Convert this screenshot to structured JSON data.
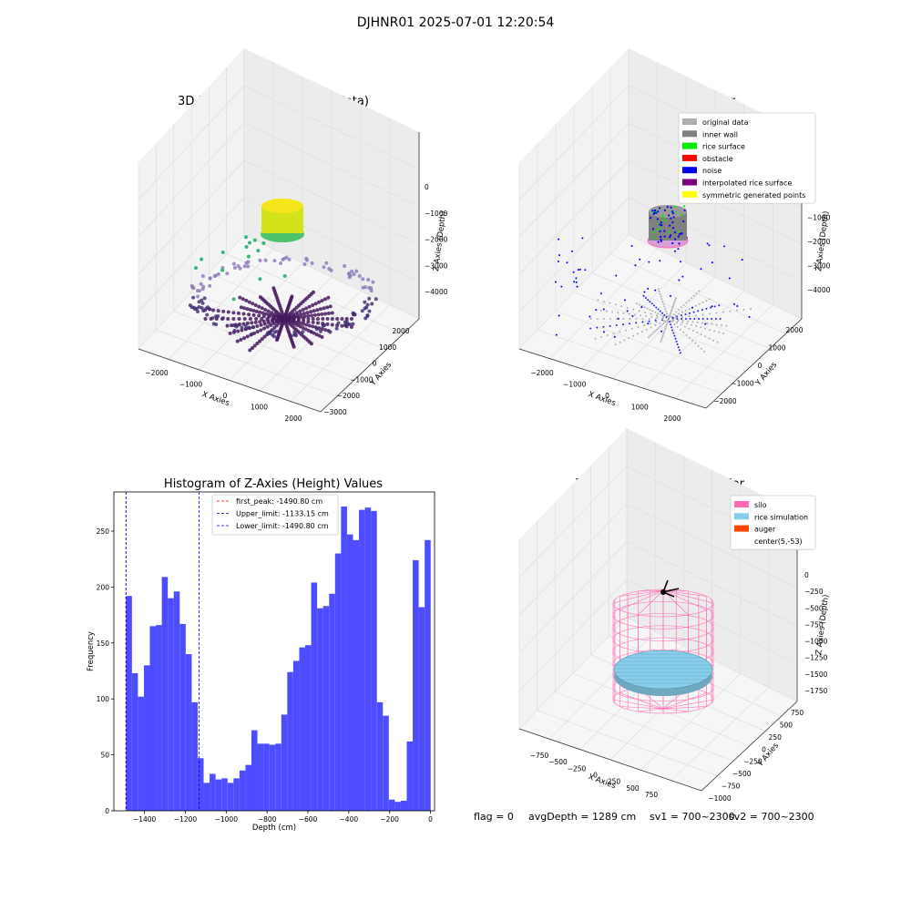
{
  "figure": {
    "suptitle": "DJHNR01 2025-07-01 12:20:54",
    "footer": {
      "flag": "flag = 0",
      "avg": "avgDepth = 1289 cm",
      "sv1": "sv1 = 700~2300",
      "sv2": "sv2 = 700~2300"
    }
  },
  "chart_data": [
    {
      "type": "scatter",
      "projection": "3d",
      "title": "3D Plot of Silo Interior(row data)",
      "xlabel": "X Axies",
      "ylabel": "Y Axies",
      "zlabel": "Z Axies (Depth)",
      "xticks": [
        "−2000",
        "−1000",
        "0",
        "1000",
        "2000"
      ],
      "yticks": [
        "−3000",
        "−2000",
        "−1000",
        "0",
        "1000",
        "2000"
      ],
      "zticks": [
        "0",
        "−1000",
        "−2000",
        "−3000",
        "−4000"
      ],
      "colormap": "viridis",
      "series": [
        {
          "group": "top cylinder",
          "color": "#d4e21a"
        },
        {
          "group": "mid points",
          "color": "#35b779"
        },
        {
          "group": "floor radial lines",
          "color": "#440154"
        },
        {
          "group": "floor ring",
          "color": "#6a5a9a"
        }
      ]
    },
    {
      "type": "scatter",
      "projection": "3d",
      "title": "3D classify of Silo Interior",
      "xlabel": "X Axies",
      "ylabel": "Y Axies",
      "zlabel": "Z Axies (Depth)",
      "xticks": [
        "−2000",
        "−1000",
        "0",
        "1000",
        "2000"
      ],
      "yticks": [
        "−2000",
        "−1000",
        "0",
        "1000",
        "2000"
      ],
      "zticks": [
        "0",
        "−1000",
        "−2000",
        "−3000",
        "−4000"
      ],
      "legend_position": "top-right",
      "legend": [
        {
          "label": "original data",
          "color": "#b0b0b0"
        },
        {
          "label": "inner wall",
          "color": "#808080"
        },
        {
          "label": "rice surface",
          "color": "#00ee00"
        },
        {
          "label": "obstacle",
          "color": "#ff0000"
        },
        {
          "label": "noise",
          "color": "#0000ee"
        },
        {
          "label": "interpolated rice surface",
          "color": "#800080"
        },
        {
          "label": "symmetric generated points",
          "color": "#ffff00"
        }
      ]
    },
    {
      "type": "bar",
      "title": "Histogram of Z-Axies (Height) Values",
      "xlabel": "Depth (cm)",
      "ylabel": "Frequency",
      "xlim": [
        -1550,
        20
      ],
      "ylim": [
        0,
        285
      ],
      "xticks": [
        -1400,
        -1200,
        -1000,
        -800,
        -600,
        -400,
        -200,
        0
      ],
      "yticks": [
        0,
        50,
        100,
        150,
        200,
        250
      ],
      "bin_start": -1490.8,
      "bin_width": 29.25,
      "bar_color": "#4d4dff",
      "values": [
        192,
        123,
        102,
        130,
        165,
        166,
        209,
        190,
        196,
        167,
        140,
        97,
        47,
        25,
        33,
        28,
        29,
        25,
        29,
        36,
        41,
        72,
        60,
        60,
        59,
        60,
        86,
        124,
        134,
        146,
        148,
        204,
        181,
        183,
        194,
        230,
        272,
        247,
        242,
        269,
        271,
        268,
        97,
        85,
        10,
        8,
        9,
        62,
        224,
        182,
        242
      ],
      "vlines": [
        {
          "label": "first_peak: -1490.80 cm",
          "x": -1490.8,
          "color": "#ff0000"
        },
        {
          "label": "Upper_limit: -1133.15 cm",
          "x": -1133.15,
          "color": "#0000cc"
        },
        {
          "label": "Lower_limit: -1490.80 cm",
          "x": -1490.8,
          "color": "#0000cc"
        }
      ],
      "legend_position": "top-center"
    },
    {
      "type": "surface",
      "projection": "3d",
      "title": "3D simulation of Silo Interior",
      "xlabel": "X Axies",
      "ylabel": "Y Axies",
      "zlabel": "Z Axies (Depth)",
      "xticks": [
        "−750",
        "−500",
        "−250",
        "0",
        "250",
        "500",
        "750"
      ],
      "yticks": [
        "−1000",
        "−750",
        "−500",
        "−250",
        "0",
        "250",
        "500",
        "750"
      ],
      "zticks": [
        "0",
        "−250",
        "−500",
        "−750",
        "−1000",
        "−1250",
        "−1500",
        "−1750"
      ],
      "legend_position": "top-right",
      "legend": [
        {
          "label": "silo",
          "color": "#ff69b4"
        },
        {
          "label": "rice simulation",
          "color": "#87ceeb"
        },
        {
          "label": "auger",
          "color": "#ff4500"
        },
        {
          "label": "center(5,-53)",
          "color": ""
        }
      ]
    }
  ]
}
